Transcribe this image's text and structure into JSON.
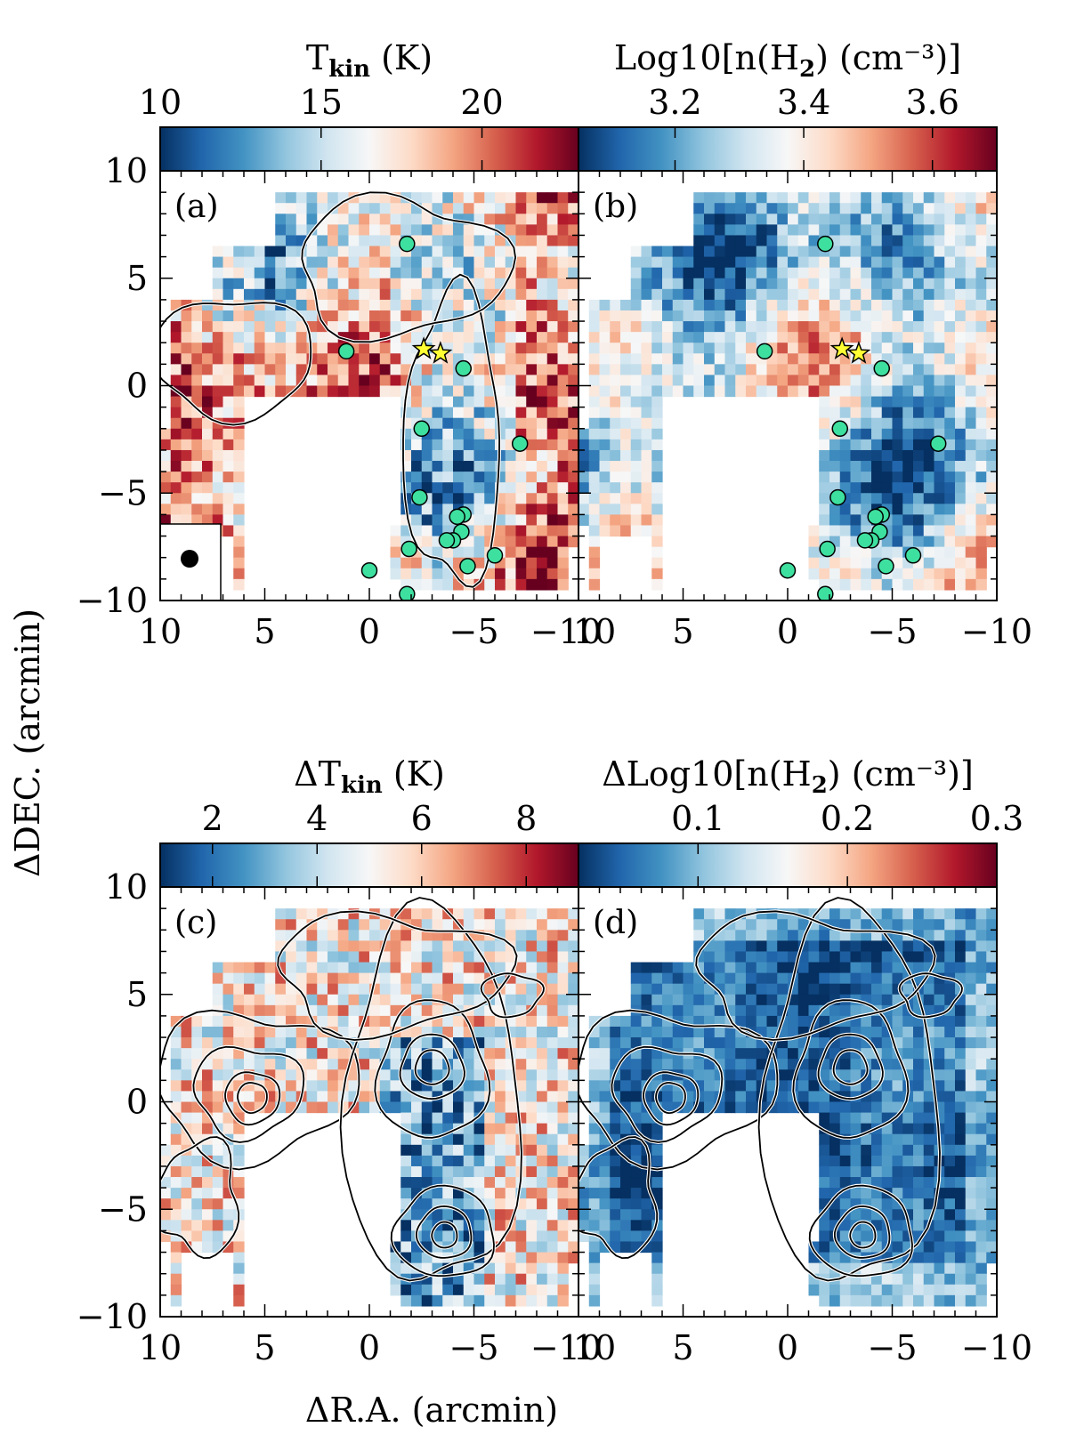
{
  "chart_data": [
    {
      "type": "heatmap",
      "panel_label": "(a)",
      "colorbar": {
        "title": "T",
        "title_sub": "kin",
        "title_unit": " (K)",
        "range": [
          10,
          23
        ],
        "ticks": [
          10,
          15,
          20
        ],
        "tick_labels": [
          "10",
          "15",
          "20"
        ],
        "colormap": "RdBu_r"
      },
      "seed": 11,
      "has_contours": true,
      "contour_style": "single",
      "has_markers": true,
      "has_beam": true,
      "xlim": [
        10,
        -10
      ],
      "ylim": [
        -10,
        10
      ]
    },
    {
      "type": "heatmap",
      "panel_label": "(b)",
      "colorbar": {
        "title": "Log10[n(H",
        "title_sub": "2",
        "title_unit": ") (cm⁻³)]",
        "range": [
          3.05,
          3.7
        ],
        "ticks": [
          3.2,
          3.4,
          3.6
        ],
        "tick_labels": [
          "3.2",
          "3.4",
          "3.6"
        ],
        "colormap": "RdBu_r"
      },
      "seed": 23,
      "has_contours": false,
      "has_markers": true,
      "has_beam": false,
      "xlim": [
        10,
        -10
      ],
      "ylim": [
        -10,
        10
      ]
    },
    {
      "type": "heatmap",
      "panel_label": "(c)",
      "colorbar": {
        "title": "ΔT",
        "title_sub": "kin",
        "title_unit": " (K)",
        "range": [
          1,
          9
        ],
        "ticks": [
          2,
          4,
          6,
          8
        ],
        "tick_labels": [
          "2",
          "4",
          "6",
          "8"
        ],
        "colormap": "RdBu_r"
      },
      "seed": 37,
      "has_contours": true,
      "contour_style": "multi",
      "has_markers": false,
      "has_beam": false,
      "xlim": [
        10,
        -10
      ],
      "ylim": [
        -10,
        10
      ]
    },
    {
      "type": "heatmap",
      "panel_label": "(d)",
      "colorbar": {
        "title": "ΔLog10[n(H",
        "title_sub": "2",
        "title_unit": ") (cm⁻³)]",
        "range": [
          0.02,
          0.3
        ],
        "ticks": [
          0.1,
          0.2,
          0.3
        ],
        "tick_labels": [
          "0.1",
          "0.2",
          "0.3"
        ],
        "colormap": "RdBu_r"
      },
      "seed": 53,
      "has_contours": true,
      "contour_style": "multi",
      "has_markers": false,
      "has_beam": false,
      "xlim": [
        10,
        -10
      ],
      "ylim": [
        -10,
        10
      ]
    }
  ],
  "axes": {
    "xlabel": "ΔR.A. (arcmin)",
    "ylabel": "ΔDEC. (arcmin)",
    "xticks": [
      10,
      5,
      0,
      -5,
      -10
    ],
    "xtick_labels": [
      "10",
      "5",
      "0",
      "−5",
      "−10"
    ],
    "yticks": [
      10,
      5,
      0,
      -5,
      -10
    ],
    "ytick_labels": [
      "10",
      "5",
      "0",
      "−5",
      "−10"
    ]
  },
  "markers": {
    "circles": [
      [
        -1.8,
        6.6
      ],
      [
        1.1,
        1.6
      ],
      [
        -4.5,
        0.8
      ],
      [
        -2.5,
        -2.0
      ],
      [
        -7.2,
        -2.7
      ],
      [
        -2.4,
        -5.2
      ],
      [
        -4.5,
        -6.0
      ],
      [
        -4.2,
        -6.1
      ],
      [
        -4.4,
        -6.8
      ],
      [
        -4.0,
        -7.2
      ],
      [
        -3.7,
        -7.2
      ],
      [
        -1.9,
        -7.6
      ],
      [
        -6.0,
        -7.9
      ],
      [
        -4.7,
        -8.4
      ],
      [
        0.0,
        -8.6
      ],
      [
        -1.8,
        -9.7
      ]
    ],
    "stars": [
      [
        -2.6,
        1.7
      ],
      [
        -3.4,
        1.5
      ]
    ],
    "circle_color": "#3ee0a0",
    "star_color": "#ffff33"
  },
  "colors": {
    "cmap_stops": [
      "#053061",
      "#2166ac",
      "#4393c3",
      "#92c5de",
      "#d1e5f0",
      "#f7f7f7",
      "#fddbc7",
      "#f4a582",
      "#d6604d",
      "#b2182b",
      "#67001f"
    ]
  }
}
